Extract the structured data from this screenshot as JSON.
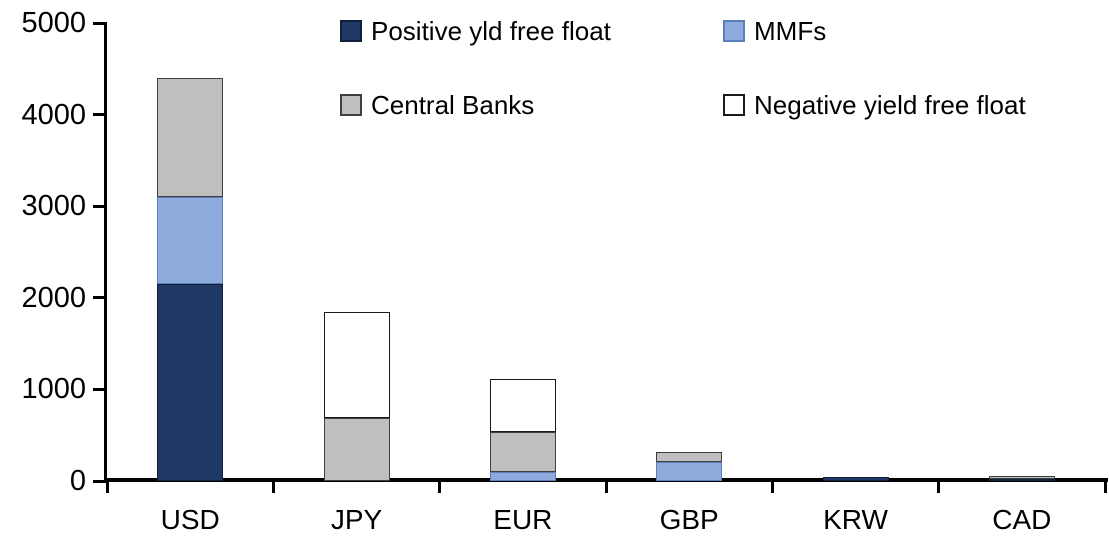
{
  "chart_data": {
    "type": "bar",
    "stacked": true,
    "title": "",
    "xlabel": "",
    "ylabel": "",
    "background": "#FFFFFF",
    "axis_color": "#000000",
    "grid": false,
    "legend_position": "top",
    "categories": [
      "USD",
      "JPY",
      "EUR",
      "GBP",
      "KRW",
      "CAD"
    ],
    "ylim": [
      0,
      5000
    ],
    "yticks": [
      0,
      1000,
      2000,
      3000,
      4000,
      5000
    ],
    "series": [
      {
        "name": "Positive yld free float",
        "color": "#1F3864",
        "border_color": "#101F3B",
        "values": [
          2150,
          0,
          0,
          0,
          45,
          25
        ]
      },
      {
        "name": "MMFs",
        "color": "#8FAADC",
        "border_color": "#5B7FB8",
        "values": [
          950,
          0,
          100,
          210,
          0,
          0
        ]
      },
      {
        "name": "Central Banks",
        "color": "#BFBFBF",
        "border_color": "#3F3F3F",
        "values": [
          1300,
          690,
          430,
          110,
          0,
          35
        ]
      },
      {
        "name": "Negative yield free float",
        "color": "#FFFFFF",
        "border_color": "#1A1A1A",
        "values": [
          0,
          1160,
          580,
          0,
          0,
          0
        ]
      }
    ],
    "totals": [
      4400,
      1850,
      1110,
      320,
      45,
      60
    ]
  }
}
